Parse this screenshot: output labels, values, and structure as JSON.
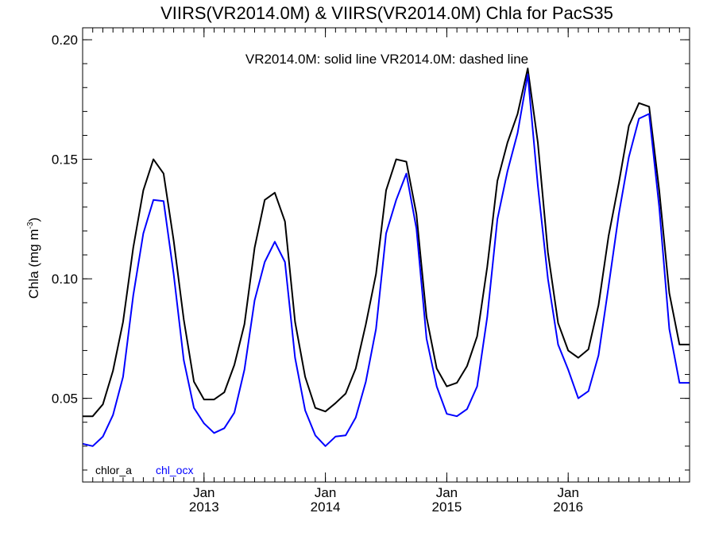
{
  "chart_data": {
    "type": "line",
    "title": "VIIRS(VR2014.0M) & VIIRS(VR2014.0M)  Chla for PacS35",
    "ylabel_main": "Chla (mg m",
    "ylabel_sup": "-3",
    "ylabel_close": ")",
    "annotation": "VR2014.0M: solid line   VR2014.0M: dashed line",
    "ylim": [
      0.015,
      0.205
    ],
    "xlim": [
      2012.0,
      2017.0
    ],
    "yticks": [
      0.05,
      0.1,
      0.15,
      0.2
    ],
    "ytick_labels": [
      "0.05",
      "0.10",
      "0.15",
      "0.20"
    ],
    "y_minor_step": 0.01,
    "xticks": [
      {
        "x": 2013.0,
        "month": "Jan",
        "year": "2013"
      },
      {
        "x": 2014.0,
        "month": "Jan",
        "year": "2014"
      },
      {
        "x": 2015.0,
        "month": "Jan",
        "year": "2015"
      },
      {
        "x": 2016.0,
        "month": "Jan",
        "year": "2016"
      }
    ],
    "x_minor_step": 0.0833333,
    "grid": false,
    "legend": [
      {
        "label": "chlor_a",
        "color": "#000000"
      },
      {
        "label": "chl_ocx",
        "color": "#0000ff"
      }
    ],
    "series": [
      {
        "name": "chlor_a",
        "color": "#000000",
        "x": [
          2012.0,
          2012.083,
          2012.167,
          2012.25,
          2012.333,
          2012.417,
          2012.5,
          2012.583,
          2012.667,
          2012.75,
          2012.833,
          2012.917,
          2013.0,
          2013.083,
          2013.167,
          2013.25,
          2013.333,
          2013.417,
          2013.5,
          2013.583,
          2013.667,
          2013.75,
          2013.833,
          2013.917,
          2014.0,
          2014.083,
          2014.167,
          2014.25,
          2014.333,
          2014.417,
          2014.5,
          2014.583,
          2014.667,
          2014.75,
          2014.833,
          2014.917,
          2015.0,
          2015.083,
          2015.167,
          2015.25,
          2015.333,
          2015.417,
          2015.5,
          2015.583,
          2015.667,
          2015.75,
          2015.833,
          2015.917,
          2016.0,
          2016.083,
          2016.167,
          2016.25,
          2016.333,
          2016.417,
          2016.5,
          2016.583,
          2016.667,
          2016.75,
          2016.833,
          2016.917,
          2017.0
        ],
        "y": [
          0.0425,
          0.0425,
          0.0475,
          0.0615,
          0.082,
          0.113,
          0.137,
          0.15,
          0.144,
          0.116,
          0.083,
          0.057,
          0.0495,
          0.0495,
          0.0525,
          0.064,
          0.081,
          0.113,
          0.133,
          0.136,
          0.124,
          0.082,
          0.059,
          0.046,
          0.0445,
          0.048,
          0.052,
          0.0625,
          0.081,
          0.102,
          0.137,
          0.15,
          0.149,
          0.127,
          0.084,
          0.0625,
          0.055,
          0.0565,
          0.0635,
          0.076,
          0.105,
          0.141,
          0.157,
          0.169,
          0.188,
          0.157,
          0.111,
          0.0815,
          0.07,
          0.067,
          0.0705,
          0.089,
          0.118,
          0.14,
          0.164,
          0.1735,
          0.172,
          0.137,
          0.094,
          0.0725,
          0.0725
        ]
      },
      {
        "name": "chl_ocx",
        "color": "#0000ff",
        "x": [
          2012.0,
          2012.083,
          2012.167,
          2012.25,
          2012.333,
          2012.417,
          2012.5,
          2012.583,
          2012.667,
          2012.75,
          2012.833,
          2012.917,
          2013.0,
          2013.083,
          2013.167,
          2013.25,
          2013.333,
          2013.417,
          2013.5,
          2013.583,
          2013.667,
          2013.75,
          2013.833,
          2013.917,
          2014.0,
          2014.083,
          2014.167,
          2014.25,
          2014.333,
          2014.417,
          2014.5,
          2014.583,
          2014.667,
          2014.75,
          2014.833,
          2014.917,
          2015.0,
          2015.083,
          2015.167,
          2015.25,
          2015.333,
          2015.417,
          2015.5,
          2015.583,
          2015.667,
          2015.75,
          2015.833,
          2015.917,
          2016.0,
          2016.083,
          2016.167,
          2016.25,
          2016.333,
          2016.417,
          2016.5,
          2016.583,
          2016.667,
          2016.75,
          2016.833,
          2016.917,
          2017.0
        ],
        "y": [
          0.031,
          0.03,
          0.034,
          0.043,
          0.059,
          0.093,
          0.119,
          0.133,
          0.1325,
          0.102,
          0.066,
          0.046,
          0.0395,
          0.0355,
          0.0375,
          0.044,
          0.062,
          0.091,
          0.107,
          0.1155,
          0.107,
          0.067,
          0.045,
          0.0345,
          0.03,
          0.034,
          0.0345,
          0.042,
          0.057,
          0.079,
          0.119,
          0.133,
          0.144,
          0.121,
          0.075,
          0.055,
          0.0435,
          0.0425,
          0.0455,
          0.055,
          0.084,
          0.125,
          0.145,
          0.161,
          0.1855,
          0.139,
          0.1,
          0.0725,
          0.062,
          0.05,
          0.053,
          0.068,
          0.097,
          0.127,
          0.151,
          0.167,
          0.169,
          0.13,
          0.079,
          0.0565,
          0.0565
        ]
      }
    ]
  }
}
